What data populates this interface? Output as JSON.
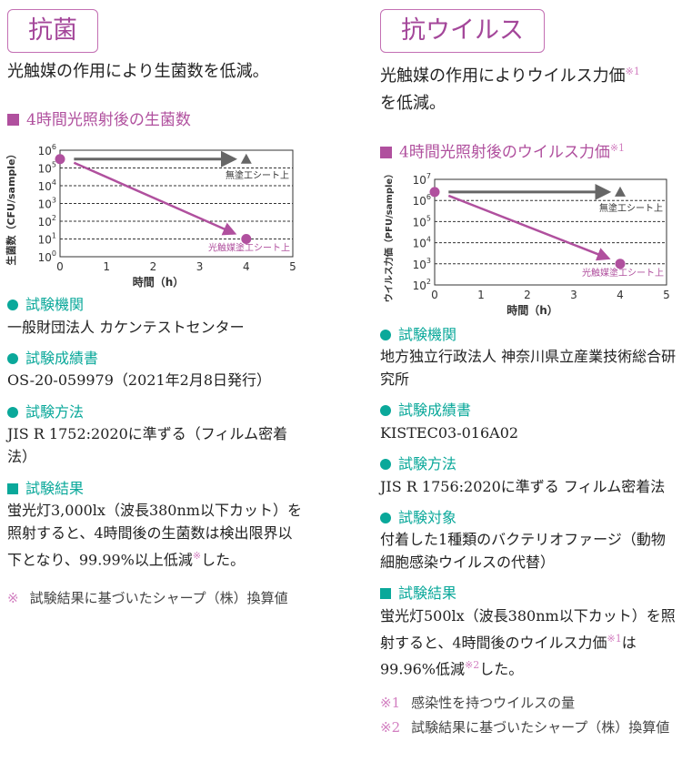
{
  "left": {
    "title": "抗菌",
    "lead": "光触媒の作用により生菌数を低減。",
    "chart_heading": "4時間光照射後の生菌数",
    "sections": [
      {
        "heading": "試験機関",
        "text": "一般財団法人 カケンテストセンター"
      },
      {
        "heading": "試験成績書",
        "text": "OS-20-059979（2021年2月8日発行）"
      },
      {
        "heading": "試験方法",
        "text": "JIS R 1752:2020に準ずる（フィルム密着法）"
      }
    ],
    "result": {
      "heading": "試験結果",
      "text1": "蛍光灯3,000lx（波長380nm以下カット）を照射すると、4時間後の生菌数は検出限界以下となり、99.99%以上低減",
      "mark": "※",
      "text2": "した。"
    },
    "notes": [
      {
        "mark": "※",
        "text": "試験結果に基づいたシャープ（株）換算値"
      }
    ]
  },
  "right": {
    "title": "抗ウイルス",
    "lead": "光触媒の作用によりウイルス力価",
    "lead_mark": "※1",
    "lead2": "を低減。",
    "chart_heading": "4時間光照射後のウイルス力価",
    "chart_heading_mark": "※1",
    "sections": [
      {
        "heading": "試験機関",
        "text": "地方独立行政法人 神奈川県立産業技術総合研究所"
      },
      {
        "heading": "試験成績書",
        "text": "KISTEC03-016A02"
      },
      {
        "heading": "試験方法",
        "text": "JIS R 1756:2020に準ずる フィルム密着法"
      },
      {
        "heading": "試験対象",
        "text": "付着した1種類のバクテリオファージ（動物細胞感染ウイルスの代替）"
      }
    ],
    "result": {
      "heading": "試験結果",
      "text1": "蛍光灯500lx（波長380nm以下カット）を照射すると、4時間後のウイルス力価",
      "mark1": "※1",
      "text2": "は99.96%低減",
      "mark2": "※2",
      "text3": "した。"
    },
    "notes": [
      {
        "mark": "※1",
        "text": "感染性を持つウイルスの量"
      },
      {
        "mark": "※2",
        "text": "試験結果に基づいたシャープ（株）換算値"
      }
    ]
  },
  "chart_data": [
    {
      "type": "line",
      "ylabel": "生菌数（CFU/sample）",
      "xlabel": "時間（h）",
      "xlim": [
        0,
        5
      ],
      "x_ticks": [
        "0",
        "1",
        "2",
        "3",
        "4",
        "5"
      ],
      "y_log_range": [
        0,
        6
      ],
      "y_ticks": [
        "0",
        "1",
        "2",
        "3",
        "4",
        "5",
        "6"
      ],
      "grid": "dashed horizontal",
      "series": [
        {
          "name": "無塗工シート上",
          "color": "#666666",
          "marker": "triangle",
          "x": [
            0,
            4
          ],
          "y_log10": [
            5.5,
            5.5
          ]
        },
        {
          "name": "光触媒塗工シート上",
          "color": "#b0509e",
          "marker": "circle",
          "x": [
            0,
            4
          ],
          "y_log10": [
            5.5,
            1
          ]
        }
      ]
    },
    {
      "type": "line",
      "ylabel": "ウイルス力価（PFU/sample）",
      "xlabel": "時間（h）",
      "xlim": [
        0,
        5
      ],
      "x_ticks": [
        "0",
        "1",
        "2",
        "3",
        "4",
        "5"
      ],
      "y_log_range": [
        2,
        7
      ],
      "y_ticks": [
        "2",
        "3",
        "4",
        "5",
        "6",
        "7"
      ],
      "grid": "dashed horizontal",
      "series": [
        {
          "name": "無塗工シート上",
          "color": "#666666",
          "marker": "triangle",
          "x": [
            0,
            4
          ],
          "y_log10": [
            6.4,
            6.4
          ]
        },
        {
          "name": "光触媒塗工シート上",
          "color": "#b0509e",
          "marker": "circle",
          "x": [
            0,
            4
          ],
          "y_log10": [
            6.4,
            3
          ]
        }
      ]
    }
  ]
}
